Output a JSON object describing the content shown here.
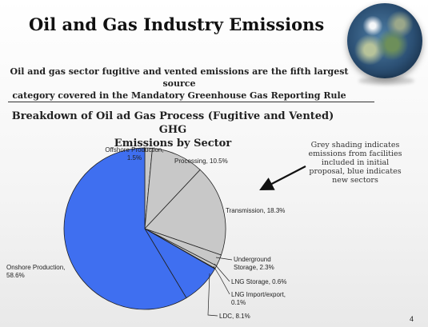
{
  "slide": {
    "title": "Oil and Gas Industry Emissions",
    "subtitle_line1": "Oil and gas sector fugitive and vented emissions are the fifth largest source",
    "subtitle_line2": "category covered in the Mandatory Greenhouse Gas Reporting Rule",
    "note_lines": [
      "Grey shading  indicates",
      "emissions from facilities",
      "included in initial",
      "proposal, blue indicates",
      "new sectors"
    ],
    "page_number": "4"
  },
  "chart_data": {
    "type": "pie",
    "title_lines": [
      "Breakdown of Oil ad Gas Process (Fugitive and Vented) GHG",
      "Emissions by Sector"
    ],
    "slices": [
      {
        "name": "Offshore Production",
        "value": 1.5,
        "label_lines": [
          "Offshore Production,",
          "1.5%"
        ],
        "group": "initial"
      },
      {
        "name": "Processing",
        "value": 10.5,
        "label_lines": [
          "Processing, 10.5%"
        ],
        "group": "initial"
      },
      {
        "name": "Transmission",
        "value": 18.3,
        "label_lines": [
          "Transmission, 18.3%"
        ],
        "group": "initial"
      },
      {
        "name": "Underground Storage",
        "value": 2.3,
        "label_lines": [
          "Underground",
          "Storage, 2.3%"
        ],
        "group": "initial"
      },
      {
        "name": "LNG Storage",
        "value": 0.6,
        "label_lines": [
          "LNG Storage, 0.6%"
        ],
        "group": "initial"
      },
      {
        "name": "LNG Import/export",
        "value": 0.1,
        "label_lines": [
          "LNG Import/export,",
          "0.1%"
        ],
        "group": "initial"
      },
      {
        "name": "LDC",
        "value": 8.1,
        "label_lines": [
          "LDC, 8.1%"
        ],
        "group": "new"
      },
      {
        "name": "Onshore Production",
        "value": 58.6,
        "label_lines": [
          "Onshore Production,",
          "58.6%"
        ],
        "group": "new"
      }
    ],
    "colors": {
      "initial": "#c8c8c8",
      "new": "#3f6ff0",
      "edge": "#222222"
    },
    "legend": "none"
  }
}
